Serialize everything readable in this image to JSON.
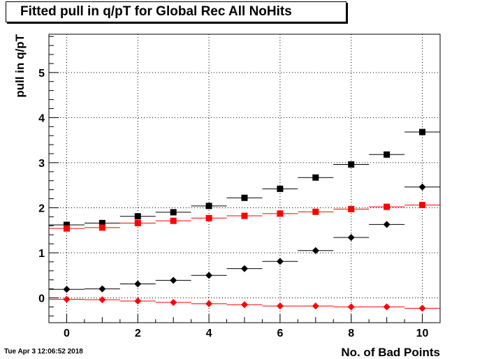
{
  "header": {
    "title": "Fitted pull in q/pT for Global Rec All NoHits",
    "timestamp": "Tue Apr  3 12:06:52 2018"
  },
  "chart_data": {
    "type": "scatter",
    "title": "Fitted pull in q/pT for Global Rec All NoHits",
    "xlabel": "No. of Bad Points",
    "ylabel": "pull in q/pT",
    "xlim": [
      -0.5,
      10.5
    ],
    "ylim": [
      -0.55,
      5.85
    ],
    "xticks": [
      0,
      2,
      4,
      6,
      8,
      10
    ],
    "yticks": [
      0,
      1,
      2,
      3,
      4,
      5
    ],
    "grid": true,
    "x": [
      0,
      1,
      2,
      3,
      4,
      5,
      6,
      7,
      8,
      9,
      10
    ],
    "series": [
      {
        "marker": "square",
        "color": "#000000",
        "values": [
          1.62,
          1.66,
          1.81,
          1.9,
          2.04,
          2.22,
          2.42,
          2.67,
          2.96,
          3.18,
          3.68
        ]
      },
      {
        "marker": "square",
        "color": "#ff0000",
        "values": [
          1.54,
          1.56,
          1.66,
          1.71,
          1.77,
          1.82,
          1.87,
          1.91,
          1.97,
          2.02,
          2.06
        ]
      },
      {
        "marker": "diamond",
        "color": "#000000",
        "values": [
          0.19,
          0.2,
          0.31,
          0.39,
          0.5,
          0.65,
          0.81,
          1.05,
          1.34,
          1.63,
          2.46
        ]
      },
      {
        "marker": "diamond",
        "color": "#ff0000",
        "values": [
          -0.03,
          -0.04,
          -0.07,
          -0.1,
          -0.13,
          -0.15,
          -0.18,
          -0.18,
          -0.2,
          -0.2,
          -0.23
        ]
      }
    ]
  }
}
